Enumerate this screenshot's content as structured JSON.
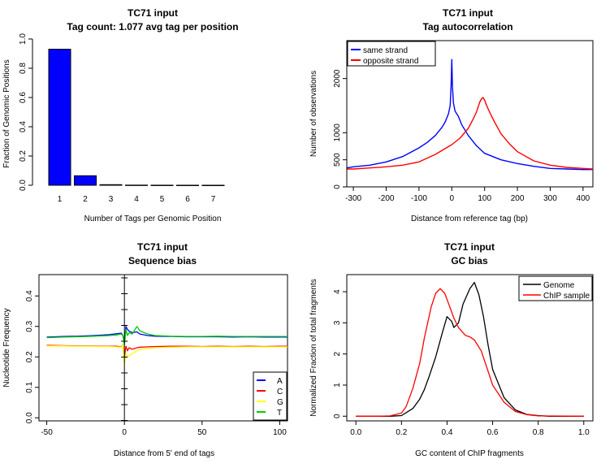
{
  "chart_data": [
    {
      "id": "tagcount",
      "type": "bar",
      "title": "TC71 input",
      "subtitle": "Tag count:  1.077  avg tag per position",
      "xlabel": "Number of Tags per Genomic Position",
      "ylabel": "Fraction of Genomic Positions",
      "categories": [
        "1",
        "2",
        "3",
        "4",
        "5",
        "6",
        "7"
      ],
      "values": [
        0.93,
        0.065,
        0.004,
        0.001,
        0.0005,
        0.0003,
        0.0002
      ],
      "ylim": [
        0,
        1
      ],
      "yticks": [
        "0.0",
        "0.2",
        "0.4",
        "0.6",
        "0.8",
        "1.0"
      ],
      "bar_color": "#0000ff"
    },
    {
      "id": "autocorr",
      "type": "line",
      "title": "TC71 input",
      "subtitle": "Tag autocorrelation",
      "xlabel": "Distance from reference tag (bp)",
      "ylabel": "Number of observations",
      "xlim": [
        -320,
        430
      ],
      "ylim": [
        0,
        2700
      ],
      "xticks": [
        "-300",
        "-200",
        "-100",
        "0",
        "100",
        "200",
        "300",
        "400"
      ],
      "yticks": [
        "0",
        "500",
        "1000",
        "2000"
      ],
      "legend_position": "top-left",
      "series": [
        {
          "name": "same strand",
          "color": "#0000ff",
          "x": [
            -320,
            -300,
            -250,
            -200,
            -150,
            -100,
            -75,
            -50,
            -30,
            -20,
            -10,
            -5,
            -2,
            0,
            2,
            5,
            10,
            20,
            30,
            50,
            75,
            100,
            150,
            200,
            250,
            300,
            350,
            400,
            430
          ],
          "y": [
            350,
            370,
            400,
            460,
            560,
            720,
            820,
            950,
            1100,
            1200,
            1350,
            1500,
            1900,
            2350,
            1850,
            1550,
            1400,
            1300,
            1150,
            950,
            760,
            620,
            500,
            430,
            380,
            340,
            330,
            320,
            320
          ]
        },
        {
          "name": "opposite strand",
          "color": "#ff0000",
          "x": [
            -320,
            -300,
            -250,
            -200,
            -150,
            -100,
            -50,
            0,
            25,
            50,
            65,
            75,
            85,
            90,
            95,
            100,
            105,
            110,
            120,
            130,
            150,
            175,
            200,
            250,
            300,
            350,
            400,
            430
          ],
          "y": [
            330,
            330,
            350,
            370,
            400,
            460,
            600,
            780,
            900,
            1080,
            1250,
            1380,
            1560,
            1620,
            1650,
            1600,
            1520,
            1450,
            1320,
            1200,
            980,
            800,
            650,
            480,
            400,
            360,
            340,
            330
          ]
        }
      ]
    },
    {
      "id": "seqbias",
      "type": "line",
      "title": "TC71 input",
      "subtitle": "Sequence bias",
      "xlabel": "Distance from 5' end of tags",
      "ylabel": "Nucleotide Frequency",
      "xlim": [
        -55,
        105
      ],
      "ylim": [
        -0.01,
        0.47
      ],
      "xticks": [
        "-50",
        "0",
        "50",
        "100"
      ],
      "yticks": [
        "0.0",
        "0.1",
        "0.2",
        "0.3",
        "0.4"
      ],
      "legend_position": "bottom-right",
      "series": [
        {
          "name": "A",
          "color": "#0000ff",
          "x": [
            -50,
            -40,
            -30,
            -20,
            -10,
            -5,
            -2,
            -1,
            0,
            1,
            2,
            3,
            5,
            8,
            10,
            15,
            20,
            30,
            40,
            50,
            60,
            70,
            80,
            90,
            100,
            105
          ],
          "y": [
            0.265,
            0.267,
            0.268,
            0.27,
            0.273,
            0.276,
            0.278,
            0.27,
            0.25,
            0.3,
            0.29,
            0.285,
            0.28,
            0.282,
            0.275,
            0.27,
            0.268,
            0.267,
            0.266,
            0.266,
            0.266,
            0.265,
            0.266,
            0.265,
            0.265,
            0.265
          ]
        },
        {
          "name": "C",
          "color": "#ff0000",
          "x": [
            -50,
            -40,
            -30,
            -20,
            -10,
            -5,
            -2,
            -1,
            0,
            1,
            2,
            3,
            5,
            8,
            10,
            15,
            20,
            30,
            40,
            50,
            60,
            70,
            80,
            90,
            100,
            105
          ],
          "y": [
            0.238,
            0.237,
            0.236,
            0.236,
            0.235,
            0.235,
            0.233,
            0.24,
            0.2,
            0.235,
            0.22,
            0.23,
            0.225,
            0.23,
            0.232,
            0.233,
            0.234,
            0.235,
            0.235,
            0.234,
            0.235,
            0.234,
            0.235,
            0.234,
            0.235,
            0.235
          ]
        },
        {
          "name": "G",
          "color": "#ffff00",
          "x": [
            -50,
            -40,
            -30,
            -20,
            -10,
            -5,
            -2,
            -1,
            0,
            1,
            2,
            3,
            5,
            8,
            10,
            15,
            20,
            30,
            40,
            50,
            60,
            70,
            80,
            90,
            100,
            105
          ],
          "y": [
            0.236,
            0.236,
            0.235,
            0.235,
            0.234,
            0.233,
            0.232,
            0.24,
            0.18,
            0.21,
            0.2,
            0.205,
            0.21,
            0.22,
            0.225,
            0.228,
            0.23,
            0.232,
            0.233,
            0.233,
            0.233,
            0.233,
            0.233,
            0.233,
            0.233,
            0.233
          ]
        },
        {
          "name": "T",
          "color": "#00cc00",
          "x": [
            -50,
            -40,
            -30,
            -20,
            -10,
            -5,
            -2,
            -1,
            0,
            1,
            2,
            3,
            5,
            8,
            10,
            15,
            20,
            30,
            40,
            50,
            60,
            70,
            80,
            90,
            100,
            105
          ],
          "y": [
            0.263,
            0.265,
            0.266,
            0.268,
            0.27,
            0.272,
            0.275,
            0.27,
            0.24,
            0.29,
            0.27,
            0.28,
            0.275,
            0.3,
            0.285,
            0.275,
            0.27,
            0.268,
            0.267,
            0.267,
            0.268,
            0.267,
            0.267,
            0.267,
            0.267,
            0.267
          ]
        }
      ]
    },
    {
      "id": "gcbias",
      "type": "line",
      "title": "TC71 input",
      "subtitle": "GC bias",
      "xlabel": "GC content of ChIP fragments",
      "ylabel": "Normalized Fraction of total fragments",
      "xlim": [
        -0.04,
        1.04
      ],
      "ylim": [
        -0.15,
        4.55
      ],
      "xticks": [
        "0.0",
        "0.2",
        "0.4",
        "0.6",
        "0.8",
        "1.0"
      ],
      "yticks": [
        "0",
        "1",
        "2",
        "3",
        "4"
      ],
      "legend_position": "top-right",
      "series": [
        {
          "name": "Genome",
          "color": "#000000",
          "x": [
            0,
            0.1,
            0.15,
            0.2,
            0.25,
            0.28,
            0.3,
            0.32,
            0.35,
            0.38,
            0.4,
            0.42,
            0.43,
            0.45,
            0.47,
            0.5,
            0.52,
            0.54,
            0.56,
            0.58,
            0.6,
            0.65,
            0.7,
            0.75,
            0.8,
            0.85,
            1.0
          ],
          "y": [
            0,
            0,
            0,
            0.02,
            0.25,
            0.55,
            0.85,
            1.25,
            1.9,
            2.7,
            3.2,
            3.05,
            2.85,
            3.0,
            3.6,
            4.1,
            4.3,
            3.9,
            3.2,
            2.3,
            1.5,
            0.6,
            0.2,
            0.06,
            0.02,
            0,
            0
          ]
        },
        {
          "name": "ChIP sample",
          "color": "#ff0000",
          "x": [
            0,
            0.1,
            0.15,
            0.2,
            0.22,
            0.25,
            0.28,
            0.3,
            0.33,
            0.35,
            0.37,
            0.39,
            0.41,
            0.43,
            0.45,
            0.48,
            0.5,
            0.52,
            0.55,
            0.58,
            0.6,
            0.65,
            0.7,
            0.75,
            0.8,
            1.0
          ],
          "y": [
            0,
            0,
            0.01,
            0.1,
            0.3,
            0.9,
            1.7,
            2.5,
            3.5,
            3.95,
            4.1,
            3.95,
            3.55,
            3.15,
            2.85,
            2.6,
            2.55,
            2.45,
            2.1,
            1.45,
            1.0,
            0.45,
            0.15,
            0.05,
            0.01,
            0
          ]
        }
      ]
    }
  ]
}
